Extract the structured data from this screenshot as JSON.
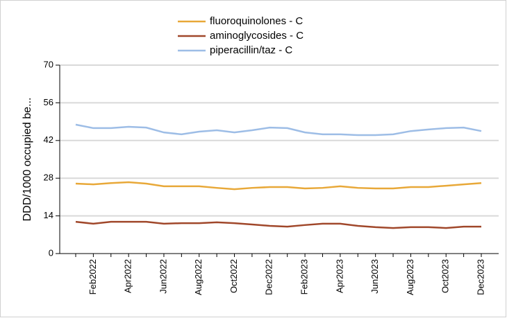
{
  "chart_data": {
    "type": "line",
    "ylabel": "DDD/1000  occupied  be...",
    "categories": [
      null,
      "Feb2022",
      null,
      "Apr2022",
      null,
      "Jun2022",
      null,
      "Aug2022",
      null,
      "Oct2022",
      null,
      "Dec2022",
      null,
      "Feb2023",
      null,
      "Apr2023",
      null,
      "Jun2023",
      null,
      "Aug2023",
      null,
      "Oct2023",
      null,
      "Dec2023"
    ],
    "series": [
      {
        "name": "fluoroquinolones - C",
        "color": "#e8a838",
        "values": [
          26.0,
          25.7,
          26.2,
          26.5,
          26.0,
          25.0,
          25.0,
          25.0,
          24.4,
          23.9,
          24.4,
          24.7,
          24.7,
          24.2,
          24.4,
          25.0,
          24.4,
          24.2,
          24.2,
          24.7,
          24.7,
          25.2,
          25.7,
          26.2
        ]
      },
      {
        "name": "aminoglycosides - C",
        "color": "#a0472a",
        "values": [
          11.8,
          11.1,
          11.8,
          11.8,
          11.8,
          11.1,
          11.3,
          11.3,
          11.6,
          11.3,
          10.8,
          10.3,
          10.0,
          10.6,
          11.1,
          11.1,
          10.3,
          9.8,
          9.5,
          9.8,
          9.8,
          9.5,
          10.0,
          10.0
        ]
      },
      {
        "name": "piperacillin/taz - C",
        "color": "#9dbde6",
        "values": [
          47.9,
          46.6,
          46.6,
          47.1,
          46.8,
          45.0,
          44.3,
          45.3,
          45.8,
          45.0,
          45.8,
          46.8,
          46.6,
          45.0,
          44.3,
          44.3,
          44.0,
          44.0,
          44.3,
          45.5,
          46.1,
          46.6,
          46.8,
          45.5
        ]
      }
    ],
    "ylim": [
      0,
      70
    ],
    "yticks": [
      0,
      14,
      28,
      42,
      56,
      70
    ],
    "grid": true,
    "legend": "top"
  }
}
